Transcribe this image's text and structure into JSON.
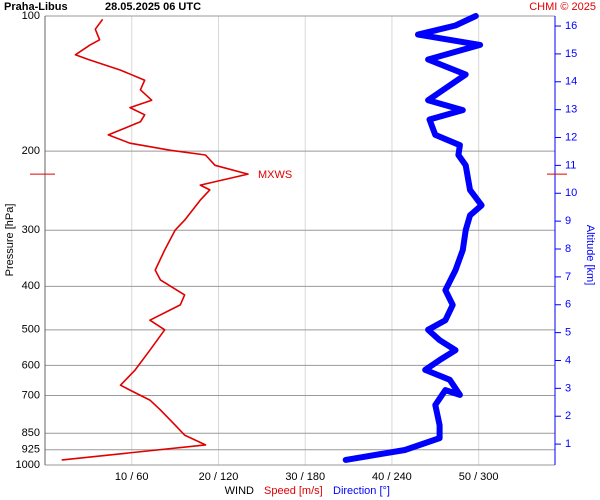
{
  "chart_data": {
    "type": "line",
    "title": "Praha-Libus",
    "subtitle": "28.05.2025 06 UTC",
    "credit": "CHMI © 2025",
    "ylabel": "Pressure [hPa]",
    "y2label": "Altitude [km]",
    "xlabel": "WIND",
    "xlabel_speed": "Speed [m/s]",
    "xlabel_direction": "Direction [°]",
    "ylim": [
      100,
      1000
    ],
    "ylog": true,
    "yticks": [
      100,
      200,
      300,
      400,
      500,
      600,
      700,
      850,
      925,
      1000
    ],
    "y2lim": [
      0.25,
      16.36
    ],
    "y2ticks": [
      1,
      2,
      3,
      4,
      5,
      6,
      7,
      8,
      9,
      10,
      11,
      12,
      13,
      14,
      15,
      16
    ],
    "xlim": [
      0,
      58.8
    ],
    "x2lim": [
      0,
      352.8
    ],
    "xticks": [
      {
        "value": 10,
        "label": "10 / 60"
      },
      {
        "value": 20,
        "label": "20 / 120"
      },
      {
        "value": 30,
        "label": "30 / 180"
      },
      {
        "value": 40,
        "label": "40 / 240"
      },
      {
        "value": 50,
        "label": "50 / 300"
      }
    ],
    "grid": true,
    "annotation": {
      "text": "MXWS",
      "y": 225
    },
    "series": [
      {
        "name": "Speed [m/s]",
        "color": "#e00000",
        "axis": "x",
        "pressure": [
          974,
          902,
          858,
          815,
          754,
          717,
          681,
          664,
          614,
          555,
          500,
          476,
          440,
          418,
          387,
          368,
          332,
          300,
          285,
          257,
          244,
          238,
          225,
          215,
          204,
          199,
          192,
          184,
          172,
          166,
          160,
          154,
          146,
          139,
          132,
          125,
          122,
          116,
          113,
          107,
          102
        ],
        "values": [
          2.0,
          18.5,
          16.1,
          15.0,
          13.3,
          12.1,
          9.8,
          8.7,
          10.4,
          12.1,
          13.8,
          12.1,
          15.6,
          16.1,
          13.3,
          12.7,
          13.8,
          15.0,
          16.1,
          17.9,
          19.0,
          17.9,
          23.4,
          19.6,
          18.5,
          14.4,
          9.8,
          7.3,
          11.0,
          11.5,
          9.8,
          12.3,
          11.0,
          11.5,
          8.7,
          5.0,
          3.5,
          5.2,
          6.3,
          5.8,
          6.6
        ]
      },
      {
        "name": "Direction [°]",
        "color": "#0000ff",
        "axis": "x2",
        "pressure": [
          974,
          926,
          871,
          815,
          735,
          681,
          698,
          646,
          614,
          584,
          555,
          527,
          500,
          476,
          440,
          408,
          368,
          332,
          300,
          278,
          264,
          244,
          215,
          204,
          194,
          184,
          170,
          162,
          154,
          135,
          125,
          116,
          110,
          105,
          100
        ],
        "values": [
          208,
          249,
          273,
          273,
          270,
          277,
          287,
          280,
          263,
          273,
          284,
          273,
          265,
          277,
          282,
          277,
          284,
          289,
          291,
          294,
          302,
          294,
          291,
          286,
          287,
          270,
          266,
          289,
          265,
          291,
          265,
          301,
          258,
          284,
          298
        ]
      }
    ]
  }
}
